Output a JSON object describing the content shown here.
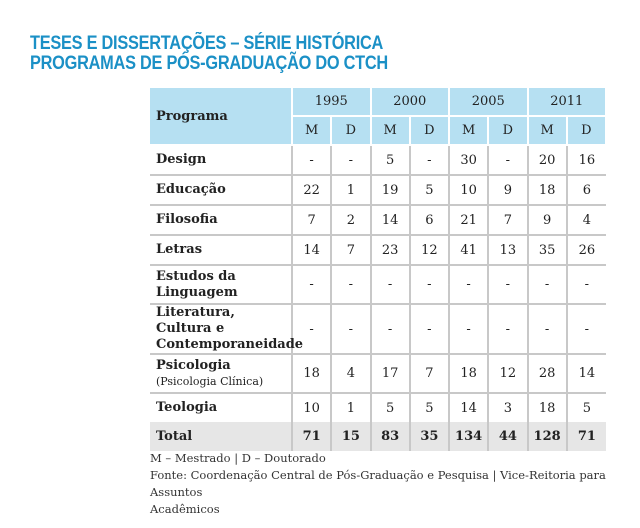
{
  "title": {
    "line1": "TESES E DISSERTAÇÕES – SÉRIE HISTÓRICA",
    "line2": "PROGRAMAS DE PÓS-GRADUAÇÃO DO CTCH"
  },
  "table": {
    "program_header": "Programa",
    "years": [
      "1995",
      "2000",
      "2005",
      "2011"
    ],
    "subheaders": [
      "M",
      "D"
    ],
    "rows": [
      {
        "program": "Design",
        "values": [
          "-",
          "-",
          "5",
          "-",
          "30",
          "-",
          "20",
          "16"
        ]
      },
      {
        "program": "Educação",
        "values": [
          "22",
          "1",
          "19",
          "5",
          "10",
          "9",
          "18",
          "6"
        ]
      },
      {
        "program": "Filosofia",
        "values": [
          "7",
          "2",
          "14",
          "6",
          "21",
          "7",
          "9",
          "4"
        ]
      },
      {
        "program": "Letras",
        "values": [
          "14",
          "7",
          "23",
          "12",
          "41",
          "13",
          "35",
          "26"
        ]
      },
      {
        "program": "Estudos da Linguagem",
        "values": [
          "-",
          "-",
          "-",
          "-",
          "-",
          "-",
          "-",
          "-"
        ]
      },
      {
        "program": "Literatura, Cultura e Contemporaneidade",
        "values": [
          "-",
          "-",
          "-",
          "-",
          "-",
          "-",
          "-",
          "-"
        ]
      },
      {
        "program": "Psicologia",
        "subtitle": "(Psicologia Clínica)",
        "values": [
          "18",
          "4",
          "17",
          "7",
          "18",
          "12",
          "28",
          "14"
        ]
      },
      {
        "program": "Teologia",
        "values": [
          "10",
          "1",
          "5",
          "5",
          "14",
          "3",
          "18",
          "5"
        ]
      }
    ],
    "total": {
      "label": "Total",
      "values": [
        "71",
        "15",
        "83",
        "35",
        "134",
        "44",
        "128",
        "71"
      ]
    }
  },
  "footer": {
    "legend": "M – Mestrado | D – Doutorado",
    "source_line1": "Fonte: Coordenação Central de Pós-Graduação e Pesquisa | Vice-Reitoria para Assuntos",
    "source_line2": "Acadêmicos"
  }
}
